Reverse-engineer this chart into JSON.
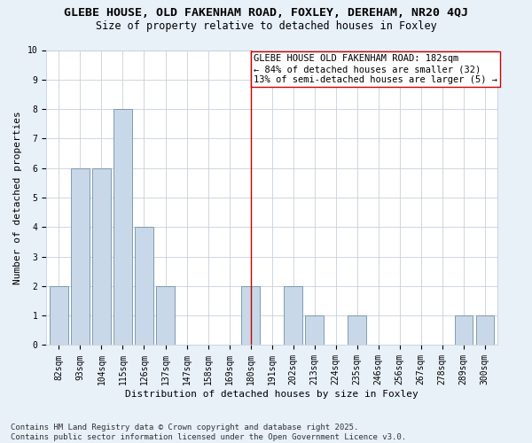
{
  "title": "GLEBE HOUSE, OLD FAKENHAM ROAD, FOXLEY, DEREHAM, NR20 4QJ",
  "subtitle": "Size of property relative to detached houses in Foxley",
  "xlabel": "Distribution of detached houses by size in Foxley",
  "ylabel": "Number of detached properties",
  "categories": [
    "82sqm",
    "93sqm",
    "104sqm",
    "115sqm",
    "126sqm",
    "137sqm",
    "147sqm",
    "158sqm",
    "169sqm",
    "180sqm",
    "191sqm",
    "202sqm",
    "213sqm",
    "224sqm",
    "235sqm",
    "246sqm",
    "256sqm",
    "267sqm",
    "278sqm",
    "289sqm",
    "300sqm"
  ],
  "values": [
    2,
    6,
    6,
    8,
    4,
    2,
    0,
    0,
    0,
    2,
    0,
    2,
    1,
    0,
    1,
    0,
    0,
    0,
    0,
    1,
    1
  ],
  "bar_color": "#c8d8e8",
  "bar_edge_color": "#7090a8",
  "highlight_index": 9,
  "highlight_color": "#cc0000",
  "ylim": [
    0,
    10
  ],
  "yticks": [
    0,
    1,
    2,
    3,
    4,
    5,
    6,
    7,
    8,
    9,
    10
  ],
  "annotation_text": "GLEBE HOUSE OLD FAKENHAM ROAD: 182sqm\n← 84% of detached houses are smaller (32)\n13% of semi-detached houses are larger (5) →",
  "footer": "Contains HM Land Registry data © Crown copyright and database right 2025.\nContains public sector information licensed under the Open Government Licence v3.0.",
  "bg_color": "#e8f0f8",
  "plot_bg_color": "#ffffff",
  "grid_color": "#c8d0dc",
  "title_fontsize": 9.5,
  "subtitle_fontsize": 8.5,
  "axis_label_fontsize": 8,
  "tick_fontsize": 7,
  "annotation_fontsize": 7.5,
  "footer_fontsize": 6.5
}
